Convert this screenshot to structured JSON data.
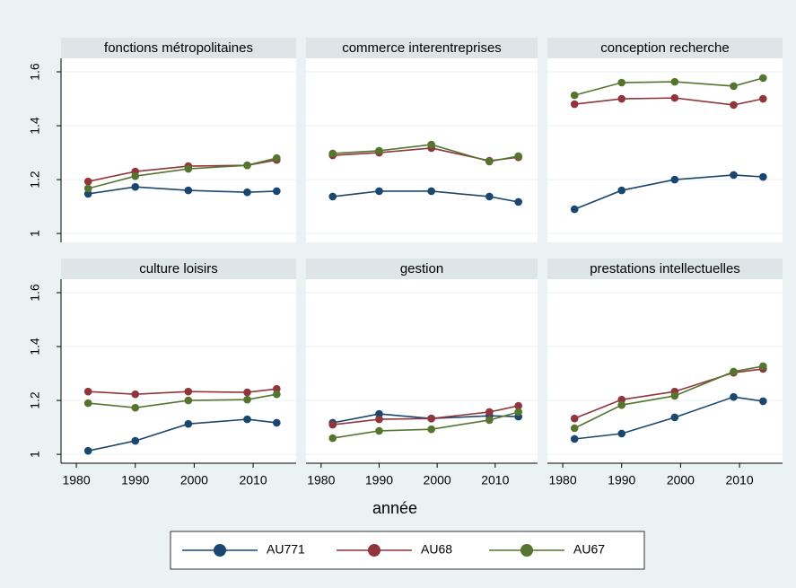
{
  "chart_data": {
    "type": "line",
    "xlabel": "année",
    "x": [
      1982,
      1990,
      1999,
      2009,
      2014
    ],
    "xlim": [
      1977.4,
      2017.3
    ],
    "xticks": [
      1980,
      1990,
      2000,
      2010
    ],
    "ylim": [
      0.967,
      1.65
    ],
    "yticks": [
      1,
      1.2,
      1.4,
      1.6
    ],
    "grid": true,
    "series": [
      {
        "name": "AU771",
        "color": "#1a476f"
      },
      {
        "name": "AU68",
        "color": "#90353b"
      },
      {
        "name": "AU67",
        "color": "#55752f"
      }
    ],
    "panels": [
      {
        "title": "fonctions métropolitaines",
        "series": [
          {
            "values": [
              1.147,
              1.173,
              1.16,
              1.153,
              1.157
            ]
          },
          {
            "values": [
              1.193,
              1.23,
              1.25,
              1.253,
              1.273
            ]
          },
          {
            "values": [
              1.167,
              1.213,
              1.24,
              1.253,
              1.28
            ]
          }
        ]
      },
      {
        "title": "commerce interentreprises",
        "series": [
          {
            "values": [
              1.137,
              1.157,
              1.157,
              1.137,
              1.117
            ]
          },
          {
            "values": [
              1.29,
              1.3,
              1.317,
              1.27,
              1.283
            ]
          },
          {
            "values": [
              1.297,
              1.307,
              1.33,
              1.267,
              1.287
            ]
          }
        ]
      },
      {
        "title": "conception recherche",
        "series": [
          {
            "values": [
              1.09,
              1.16,
              1.2,
              1.217,
              1.21
            ]
          },
          {
            "values": [
              1.48,
              1.5,
              1.503,
              1.477,
              1.5
            ]
          },
          {
            "values": [
              1.513,
              1.56,
              1.563,
              1.547,
              1.577
            ]
          }
        ]
      },
      {
        "title": "culture loisirs",
        "series": [
          {
            "values": [
              1.013,
              1.05,
              1.113,
              1.13,
              1.117
            ]
          },
          {
            "values": [
              1.233,
              1.223,
              1.233,
              1.23,
              1.243
            ]
          },
          {
            "values": [
              1.19,
              1.173,
              1.2,
              1.203,
              1.223
            ]
          }
        ]
      },
      {
        "title": "gestion",
        "series": [
          {
            "values": [
              1.117,
              1.15,
              1.133,
              1.143,
              1.14
            ]
          },
          {
            "values": [
              1.11,
              1.13,
              1.133,
              1.157,
              1.18
            ]
          },
          {
            "values": [
              1.06,
              1.087,
              1.093,
              1.127,
              1.157
            ]
          }
        ]
      },
      {
        "title": "prestations intellectuelles",
        "series": [
          {
            "values": [
              1.057,
              1.077,
              1.137,
              1.213,
              1.197
            ]
          },
          {
            "values": [
              1.133,
              1.203,
              1.233,
              1.303,
              1.317
            ]
          },
          {
            "values": [
              1.097,
              1.183,
              1.217,
              1.307,
              1.327
            ]
          }
        ]
      }
    ]
  }
}
